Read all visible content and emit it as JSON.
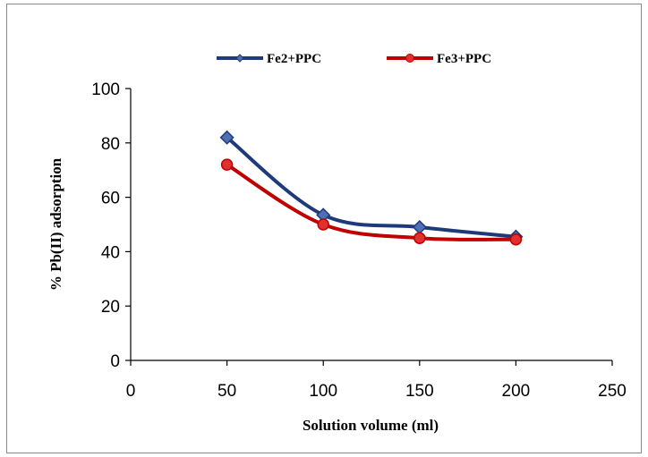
{
  "chart_data": {
    "type": "line",
    "title": "",
    "xlabel": "Solution volume (ml)",
    "ylabel": "% Pb(II) adsorption",
    "xlim": [
      0,
      250
    ],
    "ylim": [
      0,
      100
    ],
    "xticks": [
      0,
      50,
      100,
      150,
      200,
      250
    ],
    "yticks": [
      0,
      20,
      40,
      60,
      80,
      100
    ],
    "grid": false,
    "legend_position": "top",
    "smooth": true,
    "x": [
      50,
      100,
      150,
      200
    ],
    "series": [
      {
        "name": "Fe2+PPC",
        "values": [
          82,
          53.5,
          49,
          45.5
        ],
        "color": "#1f3a7a",
        "marker": "diamond",
        "marker_fill": "#4f6fb5"
      },
      {
        "name": "Fe3+PPC",
        "values": [
          72,
          50,
          45,
          44.5
        ],
        "color": "#c00000",
        "marker": "circle",
        "marker_fill": "#e03030"
      }
    ]
  }
}
